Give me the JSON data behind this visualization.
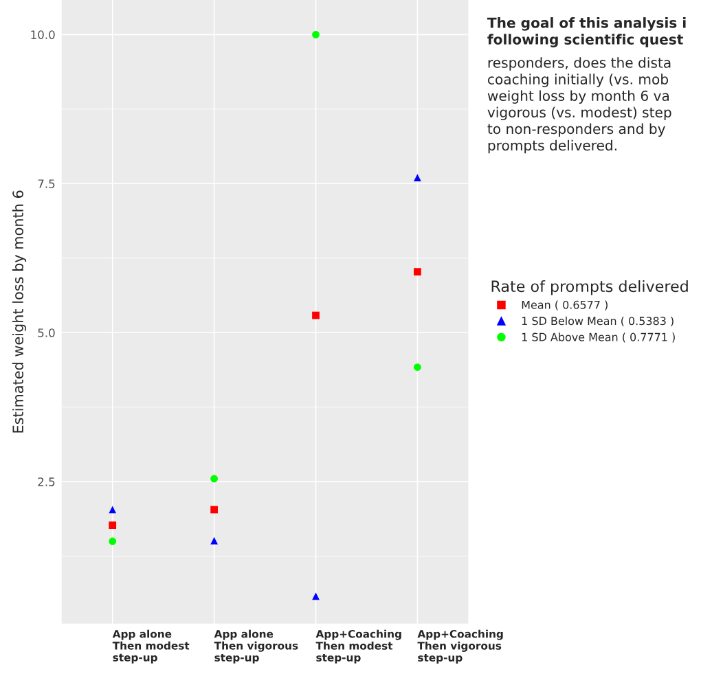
{
  "chart_data": {
    "type": "scatter",
    "ylabel": "Estimated weight loss by month 6",
    "categories": [
      "App alone\nThen modest\nstep-up",
      "App alone\nThen vigorous\nstep-up",
      "App+Coaching\nThen modest\nstep-up",
      "App+Coaching\nThen vigorous\nstep-up"
    ],
    "series": [
      {
        "name": "Mean ( 0.6577 )",
        "color": "#ff0000",
        "marker": "square",
        "values": [
          1.77,
          2.03,
          5.29,
          6.02
        ]
      },
      {
        "name": "1 SD Below Mean ( 0.5383 )",
        "color": "#0000ff",
        "marker": "triangle",
        "values": [
          2.03,
          1.51,
          0.58,
          7.6
        ]
      },
      {
        "name": "1 SD Above Mean ( 0.7771 )",
        "color": "#00ff00",
        "marker": "circle",
        "values": [
          1.5,
          2.55,
          10.0,
          4.42
        ]
      }
    ],
    "ylim": [
      0.12,
      10.58
    ],
    "yticks": [
      {
        "value": 2.5,
        "label": "2.5"
      },
      {
        "value": 5.0,
        "label": "5.0"
      },
      {
        "value": 7.5,
        "label": "7.5"
      },
      {
        "value": 10.0,
        "label": "10.0"
      }
    ],
    "grid": true,
    "legend": "right",
    "legend_title": "Rate of prompts delivered",
    "annotations": [
      "The goal of this analysis i\nfollowing scientific quest",
      "responders, does the dista\ncoaching initially (vs. mob\nweight loss by month 6 va\nvigorous (vs. modest) step\nto non-responders and by\nprompts delivered."
    ]
  }
}
